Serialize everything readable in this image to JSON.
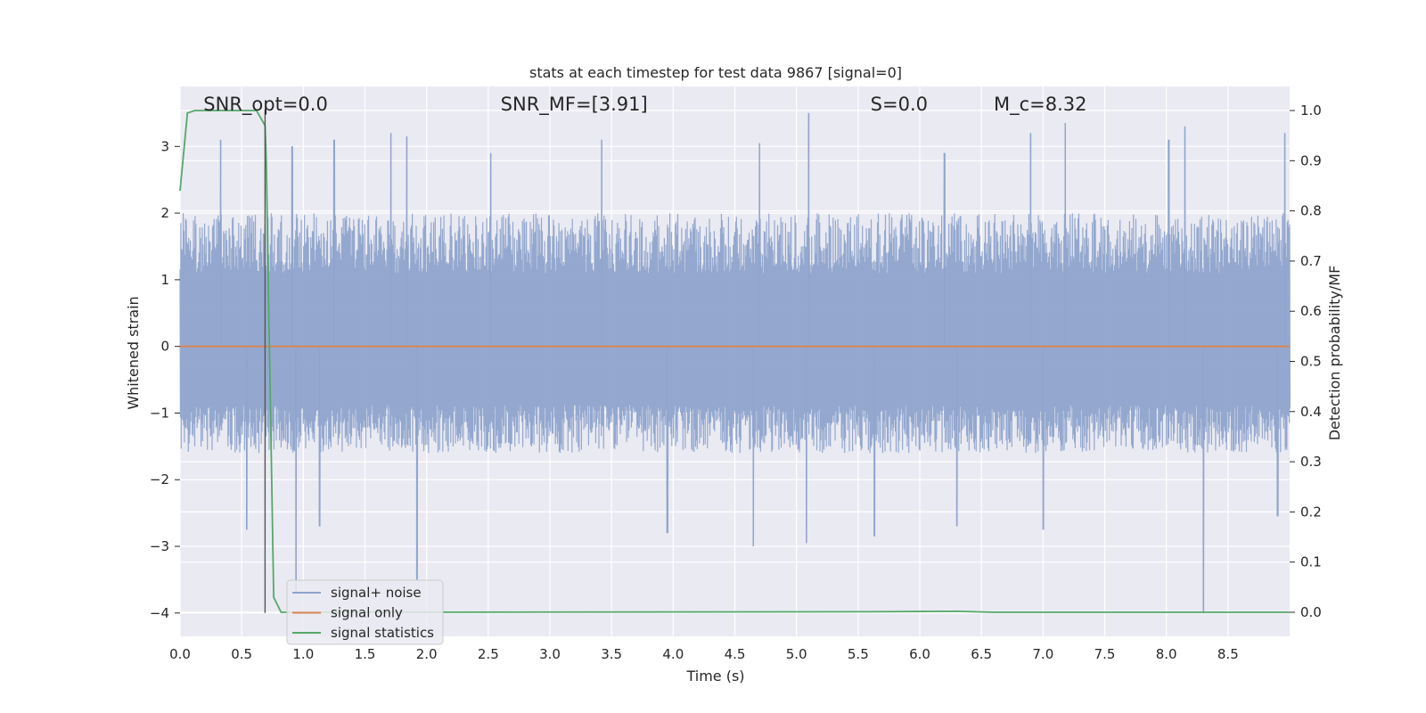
{
  "chart_data": {
    "type": "line",
    "title": "stats at each timestep for test data 9867 [signal=0]",
    "xlabel": "Time (s)",
    "ylabel": "Whitened strain",
    "y2label": "Detection probability/MF",
    "xlim": [
      0.0,
      9.0
    ],
    "ylim": [
      -4.35,
      3.9
    ],
    "y2lim": [
      -0.048,
      1.048
    ],
    "xticks": [
      0.0,
      0.5,
      1.0,
      1.5,
      2.0,
      2.5,
      3.0,
      3.5,
      4.0,
      4.5,
      5.0,
      5.5,
      6.0,
      6.5,
      7.0,
      7.5,
      8.0,
      8.5
    ],
    "xtick_labels": [
      "0.0",
      "0.5",
      "1.0",
      "1.5",
      "2.0",
      "2.5",
      "3.0",
      "3.5",
      "4.0",
      "4.5",
      "5.0",
      "5.5",
      "6.0",
      "6.5",
      "7.0",
      "7.5",
      "8.0",
      "8.5"
    ],
    "yticks": [
      -4,
      -3,
      -2,
      -1,
      0,
      1,
      2,
      3
    ],
    "ytick_labels": [
      "−4",
      "−3",
      "−2",
      "−1",
      "0",
      "1",
      "2",
      "3"
    ],
    "y2ticks": [
      0.0,
      0.1,
      0.2,
      0.3,
      0.4,
      0.5,
      0.6,
      0.7,
      0.8,
      0.9,
      1.0
    ],
    "y2tick_labels": [
      "0.0",
      "0.1",
      "0.2",
      "0.3",
      "0.4",
      "0.5",
      "0.6",
      "0.7",
      "0.8",
      "0.9",
      "1.0"
    ],
    "grid": true,
    "legend_position": "bottom-left",
    "annotations": [
      {
        "name": "snr-opt",
        "text": "SNR_opt=0.0",
        "x": 0.19
      },
      {
        "name": "snr-mf",
        "text": "SNR_MF=[3.91]",
        "x": 2.6
      },
      {
        "name": "s-stat",
        "text": "S=0.0",
        "x": 5.6
      },
      {
        "name": "mc",
        "text": "M_c=8.32",
        "x": 6.6
      }
    ],
    "series": [
      {
        "name": "signal+ noise",
        "color": "#8fa4cc",
        "axis": "left",
        "envelope": {
          "typical_max": 2.0,
          "typical_min": -1.6,
          "peaks": [
            {
              "x": 0.33,
              "y": 3.1
            },
            {
              "x": 0.91,
              "y": 3.0
            },
            {
              "x": 1.25,
              "y": 3.1
            },
            {
              "x": 1.71,
              "y": 3.2
            },
            {
              "x": 1.84,
              "y": 3.15
            },
            {
              "x": 2.52,
              "y": 2.9
            },
            {
              "x": 3.42,
              "y": 3.1
            },
            {
              "x": 4.7,
              "y": 3.05
            },
            {
              "x": 5.1,
              "y": 3.5
            },
            {
              "x": 6.2,
              "y": 2.9
            },
            {
              "x": 6.9,
              "y": 3.2
            },
            {
              "x": 7.18,
              "y": 3.35
            },
            {
              "x": 8.02,
              "y": 3.1
            },
            {
              "x": 8.15,
              "y": 3.3
            },
            {
              "x": 8.96,
              "y": 3.2
            }
          ],
          "troughs": [
            {
              "x": 0.54,
              "y": -2.75
            },
            {
              "x": 0.94,
              "y": -3.7
            },
            {
              "x": 1.13,
              "y": -2.7
            },
            {
              "x": 1.92,
              "y": -3.5
            },
            {
              "x": 3.95,
              "y": -2.8
            },
            {
              "x": 4.65,
              "y": -3.0
            },
            {
              "x": 5.08,
              "y": -2.95
            },
            {
              "x": 5.63,
              "y": -2.85
            },
            {
              "x": 6.3,
              "y": -2.7
            },
            {
              "x": 7.0,
              "y": -2.75
            },
            {
              "x": 8.3,
              "y": -4.0
            },
            {
              "x": 8.9,
              "y": -2.55
            }
          ]
        }
      },
      {
        "name": "signal only",
        "color": "#dd8452",
        "axis": "left",
        "x": [
          0.0,
          9.0
        ],
        "y": [
          0.0,
          0.0
        ]
      },
      {
        "name": "signal statistics",
        "color": "#55a868",
        "axis": "right",
        "x": [
          0.0,
          0.06,
          0.12,
          0.3,
          0.5,
          0.62,
          0.69,
          0.7,
          0.72,
          0.76,
          0.82,
          1.0,
          5.6,
          6.3,
          6.6,
          9.0
        ],
        "y": [
          0.84,
          0.995,
          1.0,
          1.0,
          1.0,
          1.0,
          0.97,
          0.9,
          0.6,
          0.03,
          0.0,
          0.0,
          0.001,
          0.002,
          0.0,
          0.0
        ]
      },
      {
        "name": "marker-line",
        "color": "#555555",
        "axis": "left",
        "x": [
          0.69,
          0.69
        ],
        "y": [
          -4.0,
          3.55
        ]
      }
    ]
  }
}
